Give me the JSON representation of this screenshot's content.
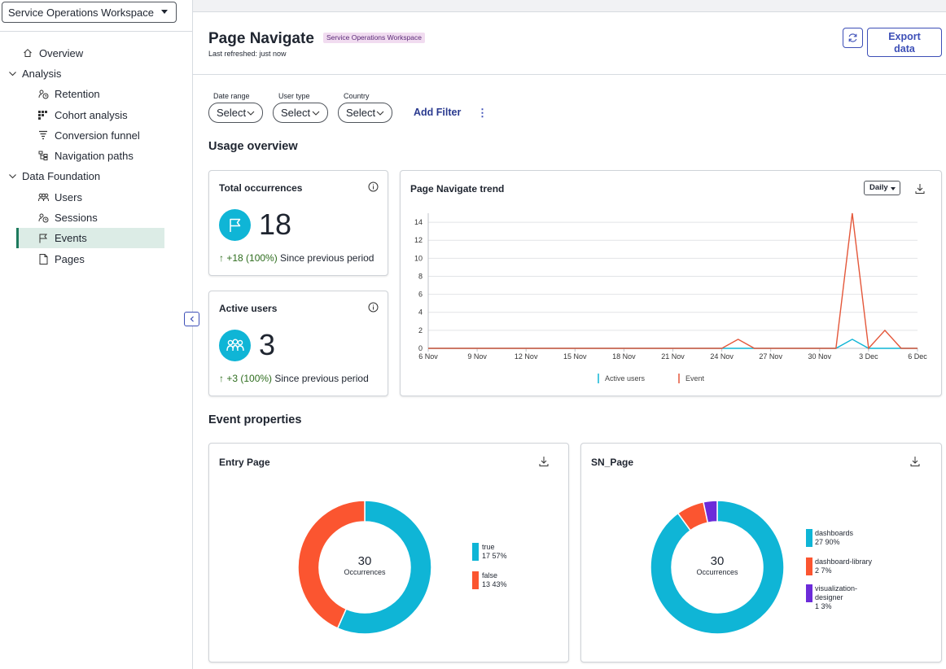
{
  "sidebar": {
    "workspace_select": "Service Operations Workspace",
    "items": [
      {
        "label": "Overview"
      },
      {
        "label": "Analysis"
      },
      {
        "label": "Retention"
      },
      {
        "label": "Cohort analysis"
      },
      {
        "label": "Conversion funnel"
      },
      {
        "label": "Navigation paths"
      },
      {
        "label": "Data Foundation"
      },
      {
        "label": "Users"
      },
      {
        "label": "Sessions"
      },
      {
        "label": "Events"
      },
      {
        "label": "Pages"
      }
    ]
  },
  "header": {
    "title": "Page Navigate",
    "badge": "Service Operations Workspace",
    "refreshed": "Last refreshed: just now",
    "export_label": "Export data"
  },
  "filters": {
    "date_range": {
      "label": "Date range",
      "value": "Select"
    },
    "user_type": {
      "label": "User type",
      "value": "Select"
    },
    "country": {
      "label": "Country",
      "value": "Select"
    },
    "add_filter": "Add Filter",
    "more": "⋮"
  },
  "usage_overview": {
    "title": "Usage overview",
    "total_occurrences": {
      "title": "Total occurrences",
      "value": "18",
      "delta_num": "+18 (100%)",
      "delta_text": " Since previous period"
    },
    "active_users": {
      "title": "Active users",
      "value": "3",
      "delta_num": "+3 (100%)",
      "delta_text": " Since previous period"
    },
    "trend": {
      "title": "Page Navigate trend",
      "interval": "Daily"
    }
  },
  "event_properties": {
    "title": "Event properties",
    "entry_page": {
      "title": "Entry Page",
      "total": "30",
      "total_label": "Occurrences",
      "legend": [
        {
          "label": "true",
          "detail": "17 57%",
          "color": "#0fb5d6"
        },
        {
          "label": "false",
          "detail": "13 43%",
          "color": "#fb5530"
        }
      ]
    },
    "sn_page": {
      "title": "SN_Page",
      "total": "30",
      "total_label": "Occurrences",
      "legend": [
        {
          "label": "dashboards",
          "detail": "27 90%",
          "color": "#0fb5d6"
        },
        {
          "label": "dashboard-library",
          "detail": "2 7%",
          "color": "#fb5530"
        },
        {
          "label": "visualization-designer",
          "label_line1": "visualization-",
          "label_line2": "designer",
          "detail": "1 3%",
          "color": "#6c2bd9"
        }
      ]
    }
  },
  "chart_data": [
    {
      "type": "line",
      "title": "Page Navigate trend",
      "x": [
        "6 Nov",
        "7 Nov",
        "8 Nov",
        "9 Nov",
        "10 Nov",
        "11 Nov",
        "12 Nov",
        "13 Nov",
        "14 Nov",
        "15 Nov",
        "16 Nov",
        "17 Nov",
        "18 Nov",
        "19 Nov",
        "20 Nov",
        "21 Nov",
        "22 Nov",
        "23 Nov",
        "24 Nov",
        "25 Nov",
        "26 Nov",
        "27 Nov",
        "28 Nov",
        "29 Nov",
        "30 Nov",
        "1 Dec",
        "2 Dec",
        "3 Dec",
        "4 Dec",
        "5 Dec",
        "6 Dec"
      ],
      "x_ticks": [
        "6 Nov",
        "9 Nov",
        "12 Nov",
        "15 Nov",
        "18 Nov",
        "21 Nov",
        "24 Nov",
        "27 Nov",
        "30 Nov",
        "3 Dec",
        "6 Dec"
      ],
      "y_ticks": [
        0,
        2,
        4,
        6,
        8,
        10,
        12,
        14
      ],
      "ylim": [
        0,
        15
      ],
      "series": [
        {
          "name": "Active users",
          "color": "#0fb5d6",
          "values": [
            0,
            0,
            0,
            0,
            0,
            0,
            0,
            0,
            0,
            0,
            0,
            0,
            0,
            0,
            0,
            0,
            0,
            0,
            0,
            0,
            0,
            0,
            0,
            0,
            0,
            0,
            1,
            0,
            0,
            0,
            0
          ]
        },
        {
          "name": "Event",
          "color": "#e4573a",
          "values": [
            0,
            0,
            0,
            0,
            0,
            0,
            0,
            0,
            0,
            0,
            0,
            0,
            0,
            0,
            0,
            0,
            0,
            0,
            0,
            1,
            0,
            0,
            0,
            0,
            0,
            0,
            15,
            0,
            2,
            0,
            0
          ]
        }
      ],
      "grid": true,
      "legend_position": "bottom"
    },
    {
      "type": "pie",
      "title": "Entry Page",
      "categories": [
        "true",
        "false"
      ],
      "values": [
        17,
        13
      ],
      "colors": [
        "#0fb5d6",
        "#fb5530"
      ]
    },
    {
      "type": "pie",
      "title": "SN_Page",
      "categories": [
        "dashboards",
        "dashboard-library",
        "visualization-designer"
      ],
      "values": [
        27,
        2,
        1
      ],
      "colors": [
        "#0fb5d6",
        "#fb5530",
        "#6c2bd9"
      ]
    }
  ]
}
